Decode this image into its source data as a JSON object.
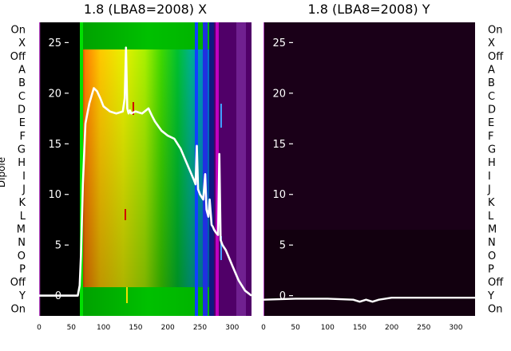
{
  "ylabel": "Dipole",
  "categories": [
    "On",
    "X",
    "Off",
    "A",
    "B",
    "C",
    "D",
    "E",
    "F",
    "G",
    "H",
    "I",
    "J",
    "K",
    "L",
    "M",
    "N",
    "O",
    "P",
    "Off",
    "Y",
    "On"
  ],
  "chart_data": [
    {
      "type": "heatmap",
      "panel": "left",
      "title": "1.8 (LBA8=2008) X",
      "ylabel": "Dipole",
      "x_range": [
        0,
        330
      ],
      "x_ticks": [
        0,
        50,
        100,
        150,
        200,
        250,
        300
      ],
      "overlay_y_range": [
        -2,
        27
      ],
      "overlay_y_ticks": [
        0,
        5,
        10,
        15,
        20,
        25
      ],
      "line_color": "#ffffff",
      "overlay_line": {
        "x": [
          0,
          60,
          63,
          65,
          68,
          72,
          78,
          85,
          90,
          95,
          100,
          110,
          120,
          130,
          133,
          135,
          137,
          139,
          141,
          143,
          150,
          160,
          170,
          175,
          180,
          190,
          200,
          210,
          220,
          230,
          240,
          243,
          245,
          247,
          250,
          255,
          258,
          260,
          263,
          265,
          268,
          270,
          272,
          275,
          278,
          280,
          282,
          285,
          290,
          300,
          310,
          320,
          330
        ],
        "y": [
          0,
          0,
          1,
          4,
          11,
          17,
          19,
          20.5,
          20.2,
          19.5,
          18.7,
          18.2,
          18.0,
          18.2,
          19.5,
          24.5,
          18.5,
          18.0,
          18.3,
          18.0,
          18.2,
          18.0,
          18.5,
          17.8,
          17.2,
          16.3,
          15.8,
          15.5,
          14.5,
          13.0,
          11.5,
          11.0,
          14.8,
          10.5,
          10.0,
          9.5,
          12.0,
          8.5,
          7.8,
          9.5,
          7.0,
          6.8,
          6.5,
          6.2,
          6.0,
          14.0,
          5.5,
          5.0,
          4.5,
          3.0,
          1.5,
          0.5,
          0
        ]
      }
    },
    {
      "type": "heatmap",
      "panel": "right",
      "title": "1.8 (LBA8=2008) Y",
      "x_range": [
        0,
        330
      ],
      "x_ticks": [
        0,
        50,
        100,
        150,
        200,
        250,
        300
      ],
      "overlay_y_range": [
        -2,
        27
      ],
      "overlay_y_ticks": [
        0,
        5,
        10,
        15,
        20,
        25
      ],
      "line_color": "#ffffff",
      "overlay_line": {
        "x": [
          0,
          50,
          100,
          140,
          150,
          160,
          170,
          180,
          200,
          250,
          300,
          330
        ],
        "y": [
          -0.4,
          -0.3,
          -0.3,
          -0.4,
          -0.6,
          -0.4,
          -0.6,
          -0.4,
          -0.2,
          -0.2,
          -0.2,
          -0.2
        ]
      }
    }
  ]
}
